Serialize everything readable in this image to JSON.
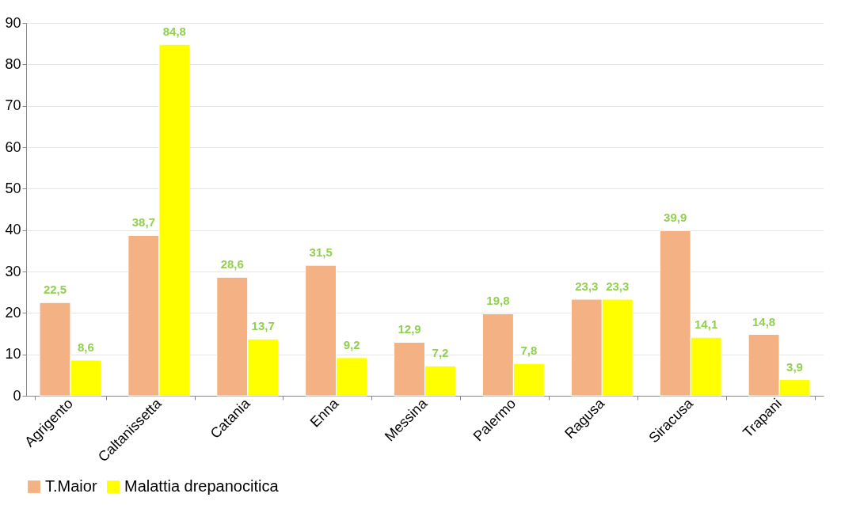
{
  "chart_data": {
    "type": "bar",
    "categories": [
      "Agrigento",
      "Caltanissetta",
      "Catania",
      "Enna",
      "Messina",
      "Palermo",
      "Ragusa",
      "Siracusa",
      "Trapani"
    ],
    "series": [
      {
        "name": "T.Maior",
        "color": "#f4b183",
        "values": [
          22.5,
          38.7,
          28.6,
          31.5,
          12.9,
          19.8,
          23.3,
          39.9,
          14.8
        ],
        "value_labels": [
          "22,5",
          "38,7",
          "28,6",
          "31,5",
          "12,9",
          "19,8",
          "23,3",
          "39,9",
          "14,8"
        ]
      },
      {
        "name": "Malattia drepanocitica",
        "color": "#ffff00",
        "values": [
          8.6,
          84.8,
          13.7,
          9.2,
          7.2,
          7.8,
          23.3,
          14.1,
          3.9
        ],
        "value_labels": [
          "8,6",
          "84,8",
          "13,7",
          "9,2",
          "7,2",
          "7,8",
          "23,3",
          "14,1",
          "3,9"
        ]
      }
    ],
    "ylim": [
      0,
      90
    ],
    "yticks": [
      0,
      10,
      20,
      30,
      40,
      50,
      60,
      70,
      80,
      90
    ],
    "grid": "y",
    "legend": "bottom"
  }
}
